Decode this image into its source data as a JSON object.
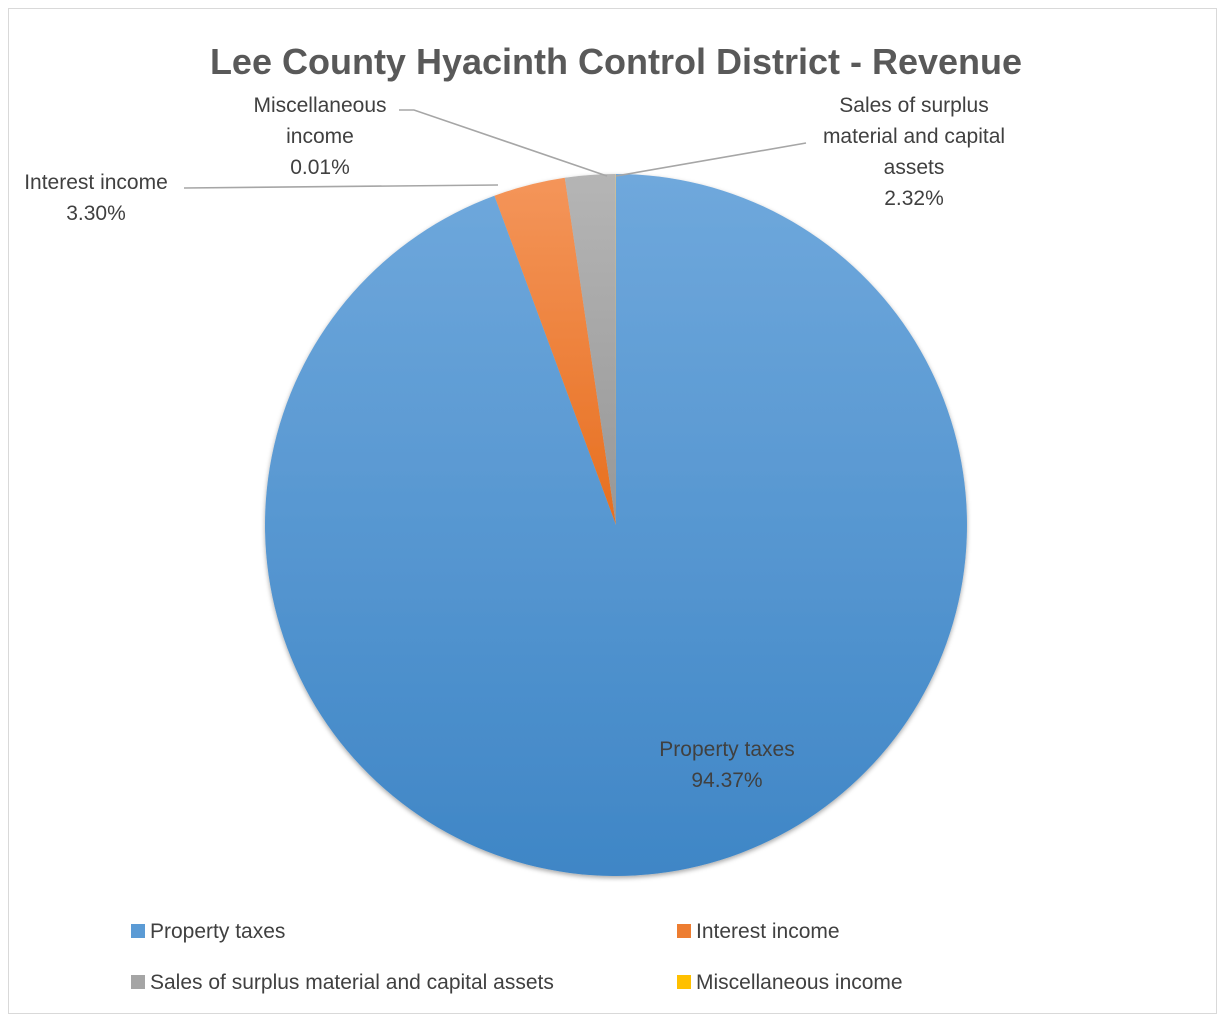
{
  "chart_data": {
    "type": "pie",
    "title": "Lee County Hyacinth Control District  - Revenue",
    "start_angle_deg": 0,
    "direction": "clockwise",
    "slices": [
      {
        "name": "Property taxes",
        "value": 94.37,
        "percent_label": "94.37%",
        "label_lines": [
          "Property taxes"
        ],
        "color": "#5b9bd5"
      },
      {
        "name": "Interest income",
        "value": 3.3,
        "percent_label": "3.30%",
        "label_lines": [
          "Interest income"
        ],
        "color": "#ed7d31"
      },
      {
        "name": "Sales of surplus material and capital assets",
        "value": 2.32,
        "percent_label": "2.32%",
        "label_lines": [
          "Sales of surplus",
          "material and capital",
          "assets"
        ],
        "color": "#a5a5a5"
      },
      {
        "name": "Miscellaneous income",
        "value": 0.01,
        "percent_label": "0.01%",
        "label_lines": [
          "Miscellaneous",
          "income"
        ],
        "color": "#ffc000"
      }
    ],
    "legend": {
      "position": "bottom",
      "items": [
        "Property taxes",
        "Interest income",
        "Sales of surplus material and capital assets",
        "Miscellaneous income"
      ]
    }
  }
}
